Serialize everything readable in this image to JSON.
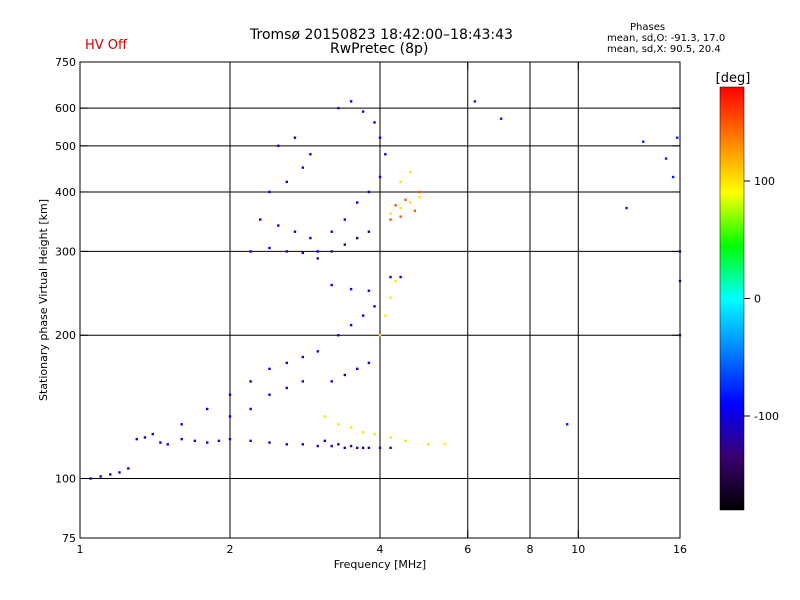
{
  "header": {
    "title_line1": "Tromsø 20150823 18:42:00–18:43:43",
    "title_line2": "RwPretec (8p)",
    "hv_status": "HV Off"
  },
  "phases": {
    "title": "Phases",
    "o_stats": "mean, sd,O: -91.3, 17.0",
    "x_stats": "mean, sd,X:  90.5, 20.4"
  },
  "colors": {
    "hv_status": "#cc0000",
    "colorbar_stops": [
      "#000000",
      "#3a0070",
      "#0000ff",
      "#0080ff",
      "#00ffff",
      "#00ff00",
      "#ffff00",
      "#ff8000",
      "#ff0000"
    ]
  },
  "chart_data": {
    "type": "scatter",
    "xlabel": "Frequency [MHz]",
    "ylabel": "Stationary phase Virtual Height [km]",
    "x_scale": "log",
    "y_scale": "log",
    "xlim": [
      1,
      16
    ],
    "ylim": [
      75,
      750
    ],
    "x_ticks": [
      1,
      2,
      4,
      6,
      8,
      10,
      16
    ],
    "y_ticks": [
      75,
      100,
      200,
      300,
      400,
      500,
      600,
      750
    ],
    "x_grid": [
      2,
      4,
      6,
      8,
      10
    ],
    "y_grid": [
      100,
      200,
      300,
      400,
      500,
      600
    ],
    "grid": true,
    "colorbar": {
      "label": "[deg]",
      "range": [
        -180,
        180
      ],
      "ticks": [
        100,
        0,
        -100
      ]
    },
    "series": [
      {
        "phase_deg": -110,
        "points": [
          [
            1.05,
            100
          ],
          [
            1.1,
            101
          ],
          [
            1.15,
            102
          ],
          [
            1.2,
            103
          ],
          [
            1.25,
            105
          ],
          [
            1.3,
            121
          ],
          [
            1.35,
            122
          ],
          [
            1.4,
            124
          ],
          [
            1.45,
            119
          ],
          [
            1.5,
            118
          ],
          [
            1.6,
            121
          ],
          [
            1.7,
            120
          ],
          [
            1.8,
            119
          ],
          [
            1.9,
            120
          ],
          [
            2.0,
            121
          ],
          [
            2.2,
            120
          ],
          [
            2.4,
            119
          ],
          [
            2.6,
            118
          ],
          [
            2.8,
            118
          ],
          [
            3.0,
            117
          ],
          [
            3.2,
            117
          ],
          [
            3.4,
            116
          ],
          [
            3.6,
            116
          ],
          [
            3.8,
            116
          ],
          [
            4.0,
            116
          ],
          [
            4.2,
            116
          ]
        ]
      },
      {
        "phase_deg": -100,
        "points": [
          [
            1.6,
            130
          ],
          [
            1.8,
            140
          ],
          [
            2.0,
            150
          ],
          [
            2.2,
            160
          ],
          [
            2.4,
            170
          ],
          [
            2.6,
            175
          ],
          [
            2.8,
            180
          ],
          [
            3.0,
            185
          ],
          [
            2.0,
            135
          ],
          [
            2.2,
            140
          ],
          [
            2.4,
            150
          ],
          [
            2.6,
            155
          ],
          [
            2.8,
            160
          ],
          [
            3.2,
            160
          ],
          [
            3.4,
            165
          ],
          [
            3.6,
            170
          ],
          [
            3.8,
            175
          ],
          [
            3.3,
            200
          ],
          [
            3.5,
            210
          ],
          [
            3.7,
            220
          ],
          [
            3.9,
            230
          ],
          [
            3.2,
            255
          ],
          [
            3.5,
            250
          ],
          [
            3.8,
            248
          ],
          [
            4.2,
            265
          ],
          [
            4.4,
            265
          ]
        ]
      },
      {
        "phase_deg": -95,
        "points": [
          [
            2.2,
            300
          ],
          [
            2.4,
            305
          ],
          [
            2.6,
            300
          ],
          [
            2.8,
            298
          ],
          [
            3.0,
            300
          ],
          [
            2.3,
            350
          ],
          [
            2.5,
            340
          ],
          [
            2.7,
            330
          ],
          [
            2.9,
            320
          ],
          [
            2.4,
            400
          ],
          [
            2.6,
            420
          ],
          [
            2.8,
            450
          ],
          [
            2.5,
            500
          ],
          [
            2.7,
            520
          ],
          [
            2.9,
            480
          ],
          [
            3.2,
            330
          ],
          [
            3.4,
            350
          ],
          [
            3.6,
            380
          ],
          [
            3.8,
            400
          ],
          [
            4.0,
            430
          ],
          [
            3.3,
            600
          ],
          [
            3.5,
            620
          ],
          [
            3.7,
            590
          ],
          [
            3.9,
            560
          ],
          [
            4.0,
            520
          ],
          [
            4.1,
            480
          ]
        ]
      },
      {
        "phase_deg": -140,
        "points": [
          [
            3.0,
            290
          ],
          [
            3.2,
            300
          ],
          [
            3.4,
            310
          ],
          [
            3.6,
            320
          ],
          [
            3.8,
            330
          ],
          [
            3.1,
            120
          ],
          [
            3.3,
            118
          ],
          [
            3.5,
            117
          ],
          [
            3.7,
            116
          ]
        ]
      },
      {
        "phase_deg": 100,
        "points": [
          [
            3.1,
            135
          ],
          [
            3.3,
            130
          ],
          [
            3.5,
            128
          ],
          [
            3.7,
            125
          ],
          [
            3.9,
            124
          ],
          [
            4.2,
            122
          ],
          [
            4.5,
            120
          ],
          [
            5.0,
            118
          ],
          [
            5.4,
            118
          ],
          [
            4.2,
            360
          ],
          [
            4.4,
            370
          ],
          [
            4.6,
            380
          ],
          [
            4.8,
            390
          ],
          [
            4.4,
            420
          ],
          [
            4.6,
            440
          ],
          [
            4.2,
            240
          ],
          [
            4.3,
            260
          ],
          [
            4.1,
            220
          ],
          [
            4.0,
            200
          ]
        ]
      },
      {
        "phase_deg": 150,
        "points": [
          [
            4.3,
            375
          ],
          [
            4.5,
            385
          ],
          [
            4.7,
            365
          ],
          [
            4.8,
            400
          ],
          [
            4.2,
            350
          ],
          [
            4.4,
            355
          ]
        ]
      },
      {
        "phase_deg": -80,
        "points": [
          [
            7.0,
            570
          ],
          [
            13.5,
            510
          ],
          [
            15.0,
            470
          ],
          [
            15.5,
            430
          ],
          [
            15.8,
            520
          ],
          [
            6.2,
            620
          ],
          [
            9.5,
            130
          ],
          [
            16.0,
            260
          ],
          [
            16.0,
            300
          ],
          [
            16.0,
            200
          ],
          [
            12.5,
            370
          ]
        ]
      }
    ]
  }
}
